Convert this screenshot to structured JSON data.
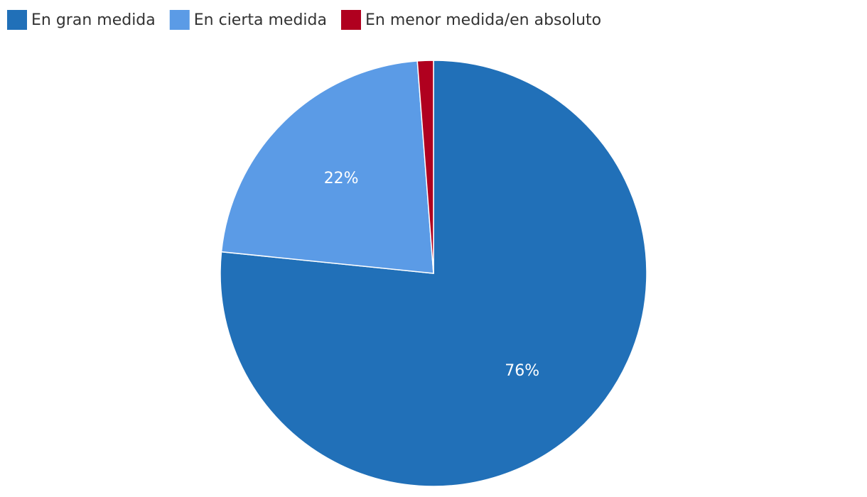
{
  "chart_data": {
    "type": "pie",
    "categories": [
      "En gran medida",
      "En cierta medida",
      "En menor medida/en absoluto"
    ],
    "values": [
      76,
      22,
      1.2
    ],
    "value_labels": [
      "76%",
      "22%",
      null
    ],
    "colors": [
      "#2170b8",
      "#5b9be6",
      "#b0001f"
    ],
    "legend": "top-left"
  }
}
